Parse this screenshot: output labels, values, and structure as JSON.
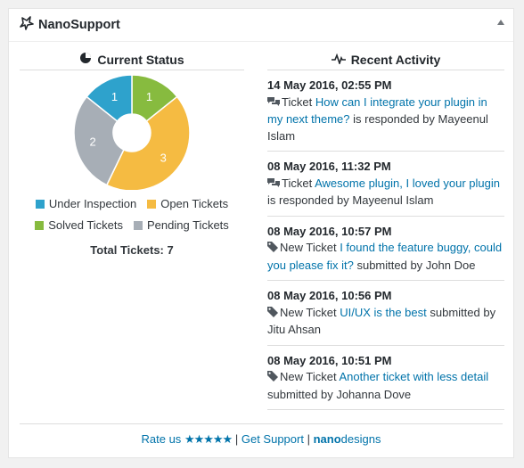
{
  "widget": {
    "title": "NanoSupport"
  },
  "status": {
    "heading": "Current Status",
    "total_label": "Total Tickets: 7",
    "legend": [
      {
        "label": "Under Inspection",
        "color": "#2ea2cc"
      },
      {
        "label": "Open Tickets",
        "color": "#f5bb42"
      },
      {
        "label": "Solved Tickets",
        "color": "#87bb3f"
      },
      {
        "label": "Pending Tickets",
        "color": "#a7aeb6"
      }
    ]
  },
  "chart_data": {
    "type": "pie",
    "categories": [
      "Solved Tickets",
      "Open Tickets",
      "Pending Tickets",
      "Under Inspection"
    ],
    "values": [
      1,
      3,
      2,
      1
    ],
    "colors": [
      "#87bb3f",
      "#f5bb42",
      "#a7aeb6",
      "#2ea2cc"
    ],
    "donut": true
  },
  "activity": {
    "heading": "Recent Activity",
    "items": [
      {
        "date": "14 May 2016, 02:55 PM",
        "icon": "comments-icon",
        "prefix": "Ticket",
        "link": "How can I integrate your plugin in my next theme?",
        "suffix": "is responded by Mayeenul Islam"
      },
      {
        "date": "08 May 2016, 11:32 PM",
        "icon": "comments-icon",
        "prefix": "Ticket",
        "link": "Awesome plugin, I loved your plugin",
        "suffix": "is responded by Mayeenul Islam"
      },
      {
        "date": "08 May 2016, 10:57 PM",
        "icon": "tag-icon",
        "prefix": "New Ticket",
        "link": "I found the feature buggy, could you please fix it?",
        "suffix": "submitted by John Doe"
      },
      {
        "date": "08 May 2016, 10:56 PM",
        "icon": "tag-icon",
        "prefix": "New Ticket",
        "link": "UI/UX is the best",
        "suffix": "submitted by Jitu Ahsan"
      },
      {
        "date": "08 May 2016, 10:51 PM",
        "icon": "tag-icon",
        "prefix": "New Ticket",
        "link": "Another ticket with less detail",
        "suffix": "submitted by Johanna Dove"
      }
    ]
  },
  "footer": {
    "rate_label": "Rate us",
    "stars": "★★★★★",
    "separator": "|",
    "support_label": "Get Support",
    "brand_bold": "nano",
    "brand_rest": "designs"
  }
}
